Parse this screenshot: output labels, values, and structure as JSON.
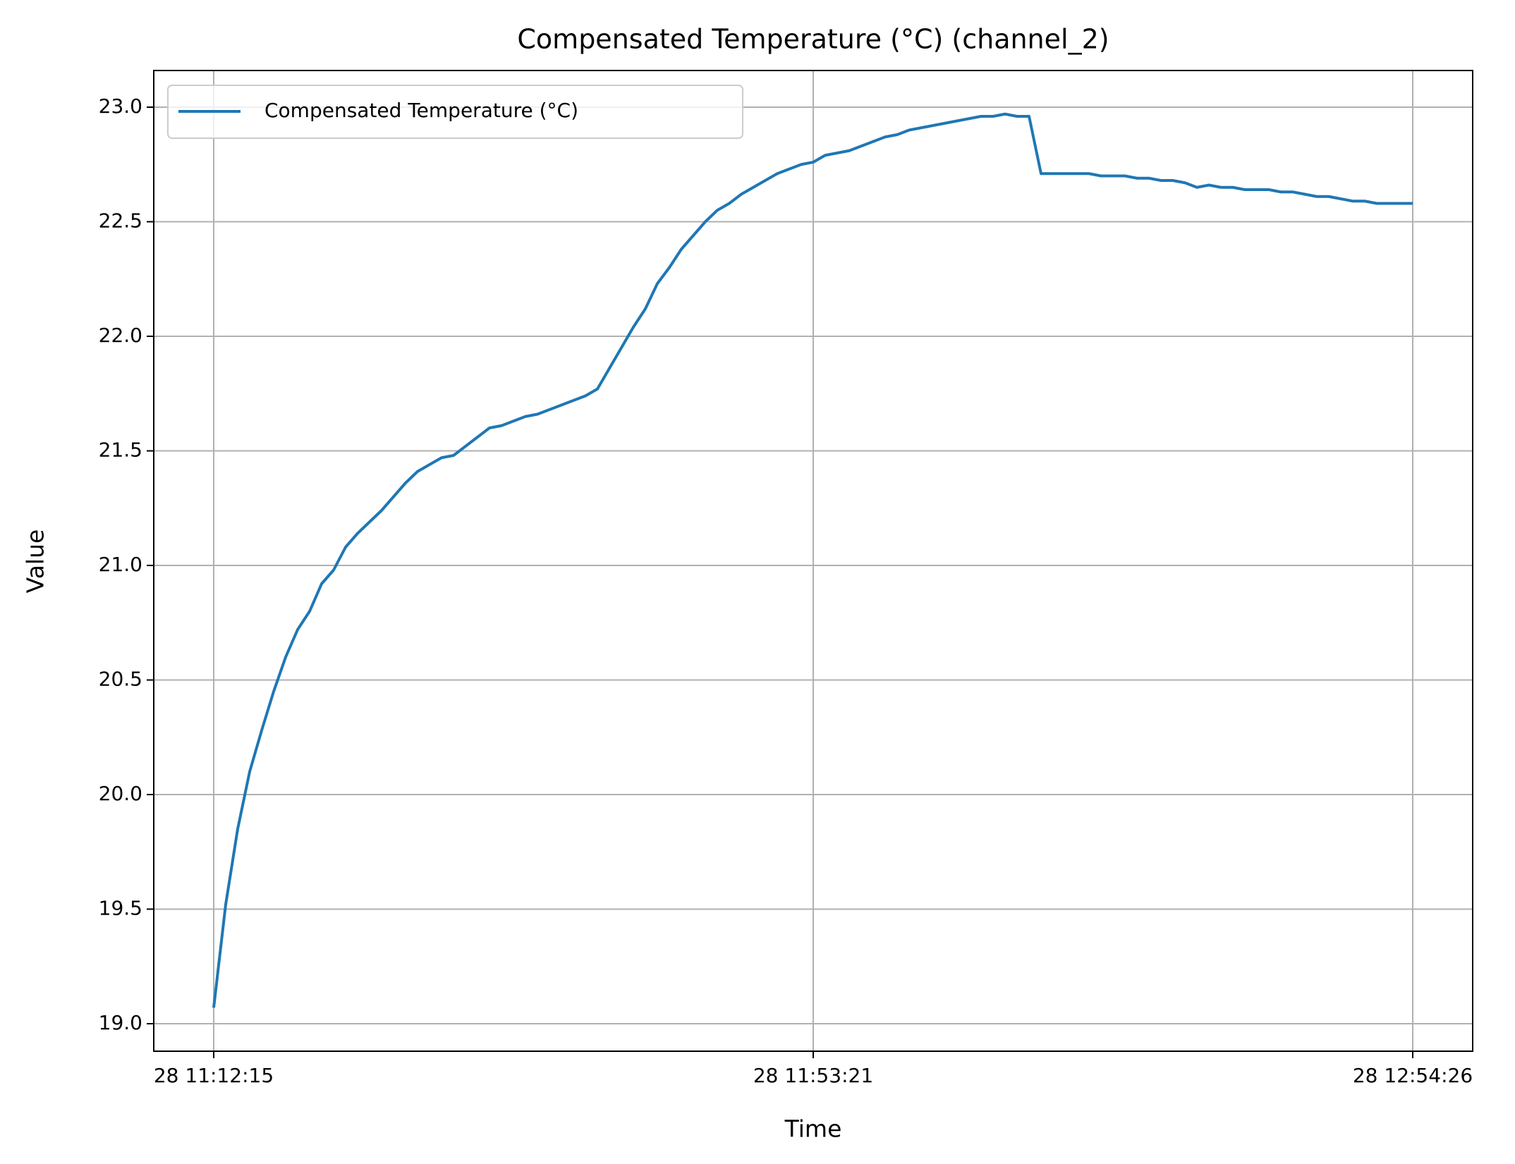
{
  "chart_data": {
    "type": "line",
    "title": "Compensated Temperature (°C) (channel_2)",
    "x_label": "Time",
    "y_label": "Value",
    "categories": [
      "28 11:12:15",
      null,
      null,
      null,
      null,
      null,
      null,
      null,
      null,
      null,
      null,
      null,
      null,
      null,
      null,
      null,
      null,
      null,
      null,
      null,
      null,
      null,
      null,
      null,
      null,
      null,
      null,
      null,
      null,
      null,
      null,
      null,
      null,
      null,
      null,
      null,
      null,
      null,
      null,
      null,
      null,
      null,
      null,
      null,
      null,
      null,
      null,
      null,
      null,
      null,
      "28 11:53:21",
      null,
      null,
      null,
      null,
      null,
      null,
      null,
      null,
      null,
      null,
      null,
      null,
      null,
      null,
      null,
      null,
      null,
      null,
      null,
      null,
      null,
      null,
      null,
      null,
      null,
      null,
      null,
      null,
      null,
      null,
      null,
      null,
      null,
      null,
      null,
      null,
      null,
      null,
      null,
      null,
      null,
      null,
      null,
      null,
      null,
      null,
      null,
      null,
      null,
      "28 12:54:26"
    ],
    "series": [
      {
        "name": "Compensated Temperature (°C)",
        "color": "#1f77b4",
        "values": [
          19.07,
          19.52,
          19.85,
          20.1,
          20.28,
          20.45,
          20.6,
          20.72,
          20.8,
          20.92,
          20.98,
          21.08,
          21.14,
          21.19,
          21.24,
          21.3,
          21.36,
          21.41,
          21.44,
          21.47,
          21.48,
          21.52,
          21.56,
          21.6,
          21.61,
          21.63,
          21.65,
          21.66,
          21.68,
          21.7,
          21.72,
          21.74,
          21.77,
          21.86,
          21.95,
          22.04,
          22.12,
          22.23,
          22.3,
          22.38,
          22.44,
          22.5,
          22.55,
          22.58,
          22.62,
          22.65,
          22.68,
          22.71,
          22.73,
          22.75,
          22.76,
          22.79,
          22.8,
          22.81,
          22.83,
          22.85,
          22.87,
          22.88,
          22.9,
          22.91,
          22.92,
          22.93,
          22.94,
          22.95,
          22.96,
          22.96,
          22.97,
          22.96,
          22.96,
          22.71,
          22.71,
          22.71,
          22.71,
          22.71,
          22.7,
          22.7,
          22.7,
          22.69,
          22.69,
          22.68,
          22.68,
          22.67,
          22.65,
          22.66,
          22.65,
          22.65,
          22.64,
          22.64,
          22.64,
          22.63,
          22.63,
          22.62,
          22.61,
          22.61,
          22.6,
          22.59,
          22.59,
          22.58,
          22.58,
          22.58,
          22.58
        ]
      }
    ],
    "ylim": [
      18.88,
      23.16
    ],
    "yticks": [
      {
        "value": 19,
        "label": "19.0"
      },
      19.5,
      {
        "value": 20,
        "label": "20.0"
      },
      20.5,
      {
        "value": 21,
        "label": "21.0"
      },
      21.5,
      {
        "value": 22,
        "label": "22.0"
      },
      22.5,
      {
        "value": 23,
        "label": "23.0"
      }
    ],
    "grid": true,
    "legend": "upper left"
  }
}
